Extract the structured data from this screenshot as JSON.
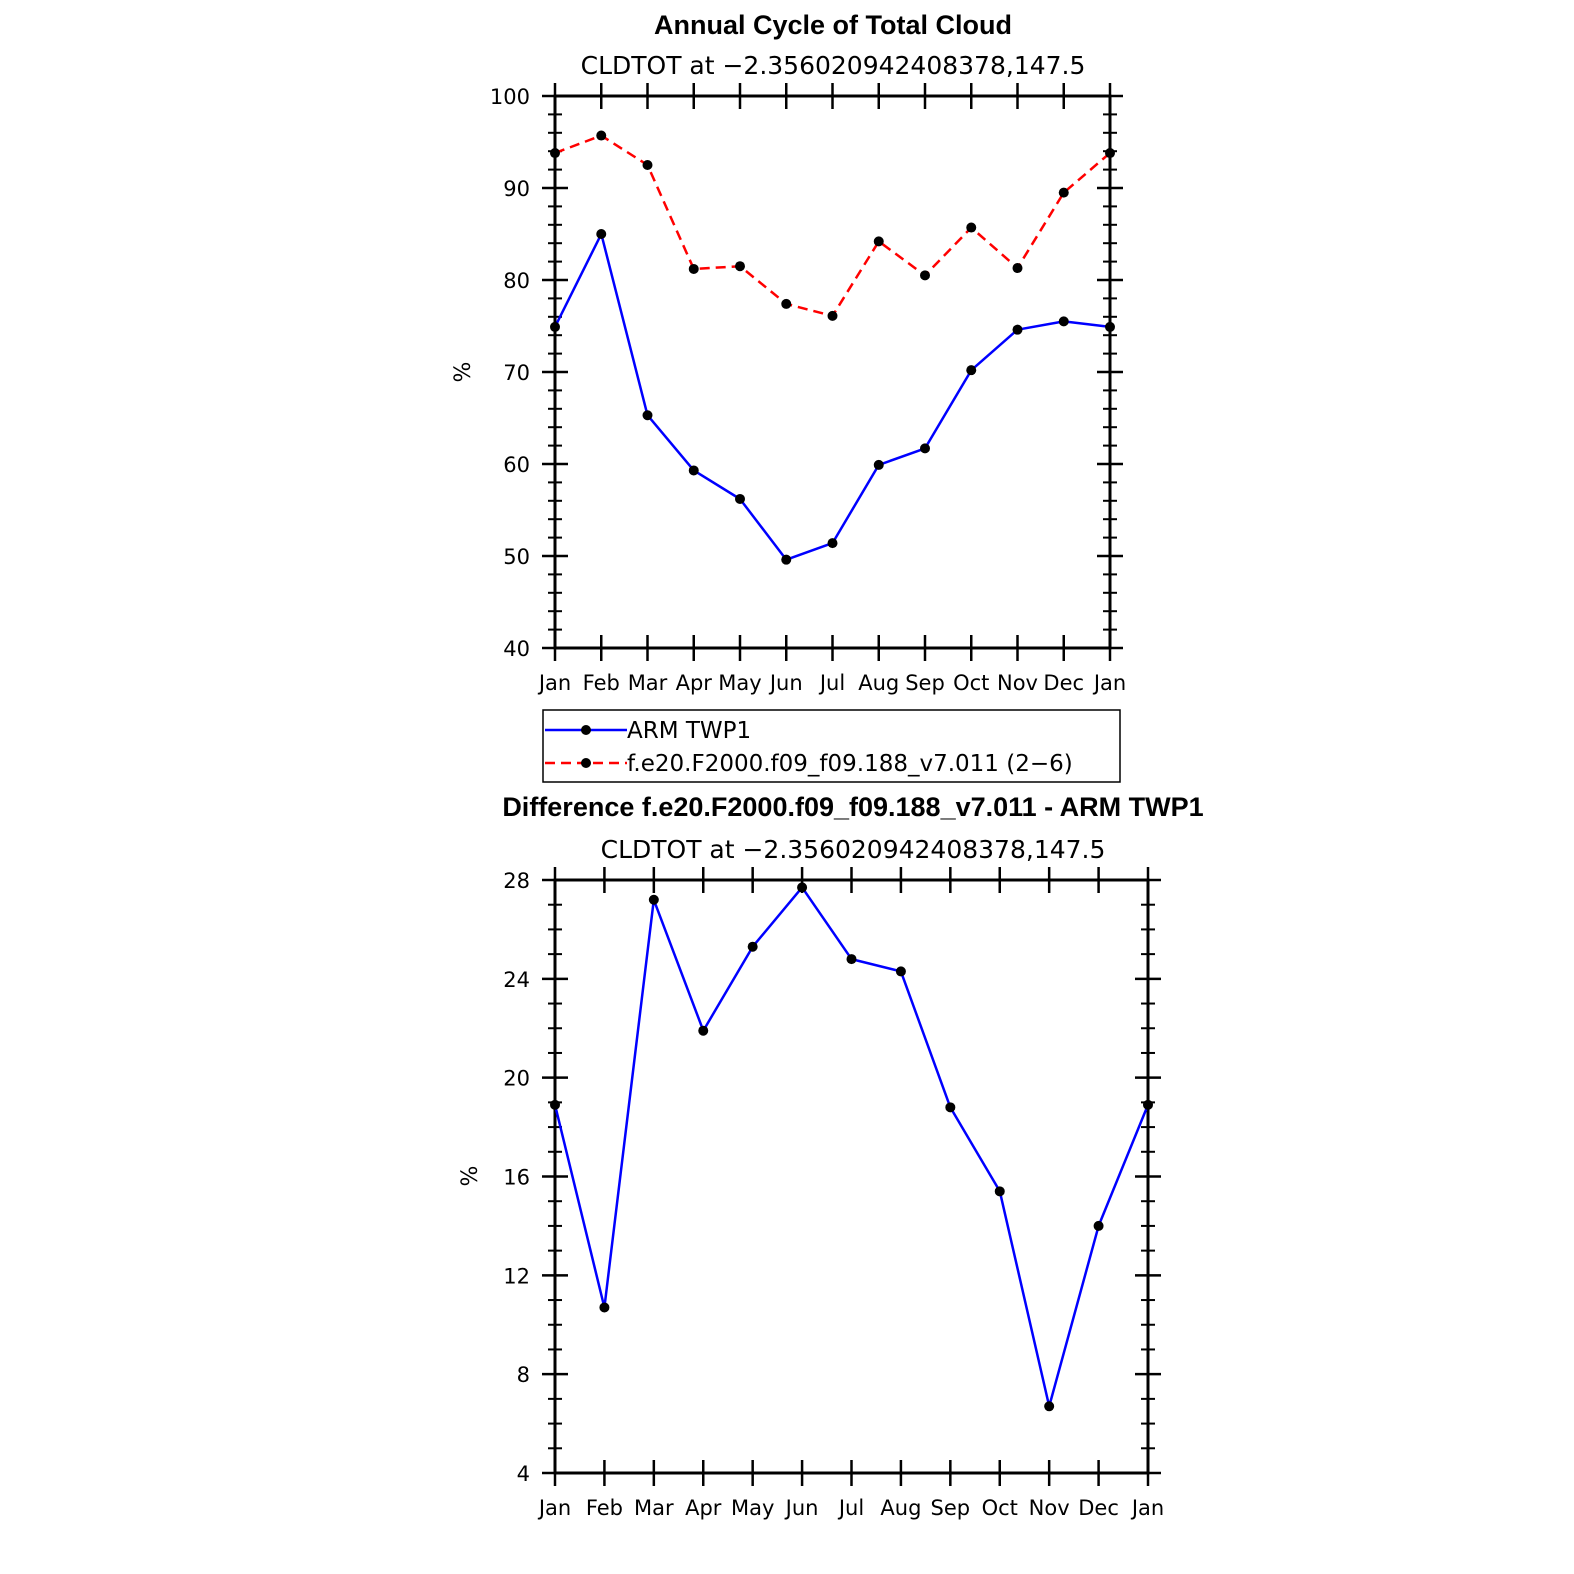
{
  "chart_data": [
    {
      "type": "line",
      "title": "Annual Cycle of Total Cloud",
      "subtitle": "CLDTOT at −2.356020942408378,147.5",
      "ylabel": "%",
      "ylim": [
        40,
        100
      ],
      "yticks": [
        40,
        50,
        60,
        70,
        80,
        90,
        100
      ],
      "ytick_labels": [
        "40",
        "50",
        "60",
        "70",
        "80",
        "90",
        "100"
      ],
      "categories": [
        "Jan",
        "Feb",
        "Mar",
        "Apr",
        "May",
        "Jun",
        "Jul",
        "Aug",
        "Sep",
        "Oct",
        "Nov",
        "Dec",
        "Jan"
      ],
      "series": [
        {
          "name": "ARM TWP1",
          "color": "#0000ff",
          "dash": "solid",
          "values": [
            74.9,
            85.0,
            65.3,
            59.3,
            56.2,
            49.6,
            51.4,
            59.9,
            61.7,
            70.2,
            74.6,
            75.5,
            74.9
          ]
        },
        {
          "name": "f.e20.F2000.f09_f09.188_v7.011 (2−6)",
          "color": "#ff0000",
          "dash": "dashed",
          "values": [
            93.8,
            95.7,
            92.5,
            81.2,
            81.5,
            77.4,
            76.1,
            84.2,
            80.5,
            85.7,
            81.3,
            89.5,
            93.8
          ]
        }
      ],
      "legend": "below"
    },
    {
      "type": "line",
      "title": "Difference f.e20.F2000.f09_f09.188_v7.011 - ARM TWP1",
      "subtitle": "CLDTOT at −2.356020942408378,147.5",
      "ylabel": "%",
      "ylim": [
        4,
        28
      ],
      "yticks": [
        4,
        8,
        12,
        16,
        20,
        24,
        28
      ],
      "ytick_labels": [
        "4",
        "8",
        "12",
        "16",
        "20",
        "24",
        "28"
      ],
      "categories": [
        "Jan",
        "Feb",
        "Mar",
        "Apr",
        "May",
        "Jun",
        "Jul",
        "Aug",
        "Sep",
        "Oct",
        "Nov",
        "Dec",
        "Jan"
      ],
      "series": [
        {
          "name": "Difference",
          "color": "#0000ff",
          "dash": "solid",
          "values": [
            18.9,
            10.7,
            27.2,
            21.9,
            25.3,
            27.7,
            24.8,
            24.3,
            18.8,
            15.4,
            6.7,
            14.0,
            18.9
          ]
        }
      ]
    }
  ]
}
